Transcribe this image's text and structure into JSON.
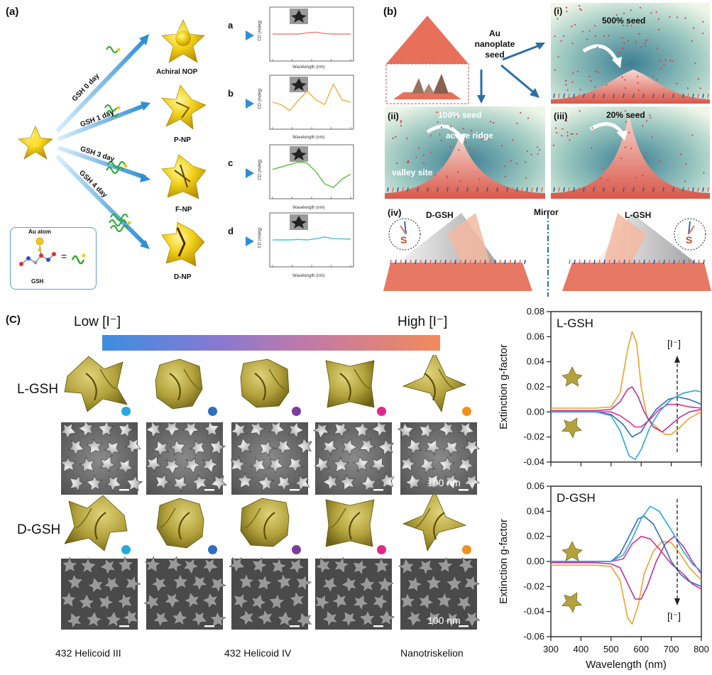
{
  "panel_a": {
    "label": "(a)",
    "arrows": [
      "GSH 0 day",
      "GSH 1 day",
      "GSH 3 day",
      "GSH 4 day"
    ],
    "particles": [
      "Achiral NOP",
      "P-NP",
      "F-NP",
      "D-NP"
    ],
    "letters": [
      "a",
      "b",
      "c",
      "d"
    ],
    "legend": {
      "au_atom": "Au atom",
      "gsh": "GSH",
      "equals": "="
    },
    "mini_ylabel": "CD (mdeg)",
    "mini_xlabel": "Wavelength (nm)",
    "mini_colors": [
      "#f08080",
      "#f0b040",
      "#58c040",
      "#40c8d8"
    ]
  },
  "panel_b": {
    "label": "(b)",
    "seed_text": "Au nanoplate seed",
    "sub_i": "(i)",
    "sub_ii": "(ii)",
    "sub_iii": "(iii)",
    "sub_iv": "(iv)",
    "seed_500": "500% seed",
    "seed_100": "100% seed",
    "seed_20": "20% seed",
    "active_ridge": "active ridge",
    "valley_site": "valley site",
    "d_gsh": "D-GSH",
    "mirror": "Mirror",
    "l_gsh": "L-GSH",
    "s_label": "S"
  },
  "panel_c": {
    "label": "(C)",
    "low": "Low [I⁻]",
    "high": "High [I⁻]",
    "row_l": "L-GSH",
    "row_d": "D-GSH",
    "scale": "100 nm",
    "dot_colors": [
      "#29a8e0",
      "#2f6fc0",
      "#7a3d9a",
      "#e0288a",
      "#f0901e"
    ],
    "bottom_labels": [
      "432 Helicoid III",
      "432 Helicoid IV",
      "Nanotriskelion"
    ]
  },
  "chart_data": [
    {
      "type": "line",
      "title": "L-GSH",
      "ylabel": "Extinction g-factor",
      "xlabel": "",
      "ylim": [
        -0.04,
        0.08
      ],
      "xlim": [
        300,
        800
      ],
      "yticks": [
        "0.08",
        "0.06",
        "0.04",
        "0.02",
        "0.00",
        "-0.02",
        "-0.04"
      ],
      "annotation": "[I⁻]",
      "series": [
        {
          "color": "#f0a030",
          "x": [
            300,
            450,
            500,
            530,
            555,
            570,
            585,
            600,
            620,
            650,
            680,
            700,
            730,
            760,
            800
          ],
          "y": [
            0.003,
            0.003,
            0.004,
            0.015,
            0.05,
            0.064,
            0.055,
            0.02,
            -0.005,
            -0.012,
            -0.018,
            -0.018,
            -0.012,
            -0.005,
            0.0
          ]
        },
        {
          "color": "#c0309a",
          "x": [
            300,
            450,
            500,
            530,
            555,
            570,
            590,
            610,
            640,
            670,
            700,
            730,
            760,
            800
          ],
          "y": [
            0.001,
            0.001,
            0.002,
            0.008,
            0.018,
            0.02,
            0.012,
            0.0,
            -0.012,
            -0.016,
            -0.01,
            -0.004,
            0.0,
            0.002
          ]
        },
        {
          "color": "#e03090",
          "x": [
            300,
            450,
            500,
            530,
            560,
            580,
            600,
            630,
            660,
            690,
            720,
            760,
            800
          ],
          "y": [
            0.0,
            0.0,
            0.0,
            -0.003,
            -0.008,
            -0.012,
            -0.012,
            -0.006,
            0.002,
            0.006,
            0.006,
            0.004,
            0.003
          ]
        },
        {
          "color": "#2f6fc0",
          "x": [
            300,
            450,
            500,
            540,
            570,
            600,
            620,
            650,
            690,
            720,
            760,
            800
          ],
          "y": [
            0.0,
            0.0,
            -0.002,
            -0.01,
            -0.02,
            -0.016,
            -0.008,
            0.002,
            0.01,
            0.012,
            0.01,
            0.006
          ]
        },
        {
          "color": "#29a8e0",
          "x": [
            300,
            450,
            500,
            530,
            560,
            580,
            600,
            630,
            660,
            700,
            740,
            780,
            800
          ],
          "y": [
            0.0,
            0.0,
            -0.003,
            -0.015,
            -0.035,
            -0.038,
            -0.03,
            -0.012,
            0.0,
            0.01,
            0.015,
            0.017,
            0.016
          ]
        }
      ]
    },
    {
      "type": "line",
      "title": "D-GSH",
      "ylabel": "Extinction g-factor",
      "xlabel": "Wavelength (nm)",
      "ylim": [
        -0.06,
        0.06
      ],
      "xlim": [
        300,
        800
      ],
      "yticks": [
        "0.06",
        "0.04",
        "0.02",
        "0.00",
        "-0.02",
        "-0.04",
        "-0.06"
      ],
      "xticks": [
        "300",
        "400",
        "500",
        "600",
        "700",
        "800"
      ],
      "annotation": "[I⁻]",
      "series": [
        {
          "color": "#f0a030",
          "x": [
            300,
            450,
            500,
            530,
            555,
            570,
            590,
            610,
            640,
            670,
            700,
            730,
            760,
            800
          ],
          "y": [
            -0.003,
            -0.003,
            -0.004,
            -0.015,
            -0.045,
            -0.05,
            -0.035,
            -0.01,
            0.008,
            0.016,
            0.015,
            0.006,
            -0.005,
            -0.015
          ]
        },
        {
          "color": "#c0309a",
          "x": [
            300,
            450,
            500,
            530,
            560,
            580,
            600,
            620,
            650,
            680,
            710,
            740,
            770,
            800
          ],
          "y": [
            -0.001,
            -0.001,
            -0.002,
            -0.005,
            -0.02,
            -0.03,
            -0.03,
            -0.02,
            0.0,
            0.014,
            0.02,
            0.012,
            0.0,
            -0.01
          ]
        },
        {
          "color": "#e03090",
          "x": [
            300,
            450,
            500,
            540,
            570,
            600,
            630,
            660,
            700,
            740,
            770,
            800
          ],
          "y": [
            0.0,
            0.0,
            0.0,
            0.002,
            0.014,
            0.02,
            0.018,
            0.01,
            -0.002,
            -0.01,
            -0.018,
            -0.022
          ]
        },
        {
          "color": "#2f6fc0",
          "x": [
            300,
            450,
            500,
            530,
            560,
            590,
            610,
            640,
            670,
            700,
            730,
            760,
            800
          ],
          "y": [
            0.0,
            0.0,
            0.0,
            0.006,
            0.02,
            0.034,
            0.036,
            0.03,
            0.016,
            0.0,
            -0.01,
            -0.016,
            -0.02
          ]
        },
        {
          "color": "#29a8e0",
          "x": [
            300,
            450,
            500,
            540,
            570,
            600,
            630,
            660,
            700,
            740,
            770,
            800
          ],
          "y": [
            0.0,
            0.0,
            0.0,
            0.005,
            0.018,
            0.034,
            0.044,
            0.04,
            0.025,
            0.008,
            -0.002,
            -0.008
          ]
        }
      ]
    }
  ]
}
